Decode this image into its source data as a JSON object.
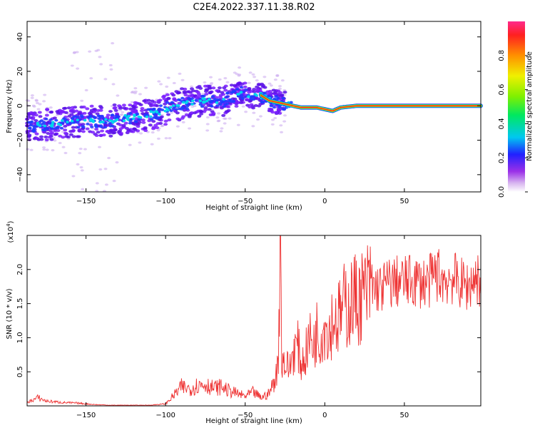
{
  "title": "C2E4.2022.337.11.38.R02",
  "chart_data": [
    {
      "type": "heatmap",
      "xlabel": "Height of straight line (km)",
      "ylabel": "Frequency (Hz)",
      "xlim": [
        -187,
        98
      ],
      "ylim": [
        -50,
        49
      ],
      "x_ticks": [
        -150,
        -100,
        -50,
        0,
        50
      ],
      "y_ticks": [
        -40,
        -20,
        0,
        20,
        40
      ],
      "ridge": {
        "x": [
          -187,
          -175,
          -165,
          -155,
          -145,
          -135,
          -125,
          -115,
          -105,
          -95,
          -85,
          -75,
          -65,
          -57,
          -50,
          -45,
          -40,
          -35,
          -30,
          -25,
          -20,
          -15,
          -10,
          -5,
          0,
          5,
          10,
          20,
          40,
          60,
          80,
          98
        ],
        "y": [
          -12,
          -11,
          -10,
          -9,
          -9,
          -9,
          -7,
          -6,
          -4,
          0,
          2,
          3,
          2,
          6,
          8,
          5,
          6,
          3,
          2,
          1,
          0,
          -1,
          -1,
          -1,
          -2,
          -3,
          -1,
          0,
          0,
          0,
          0,
          0
        ]
      },
      "colorbar": {
        "label": "Normalized spectral amplitude",
        "range": [
          0,
          1
        ],
        "ticks": [
          0.0,
          0.2,
          0.4,
          0.6,
          0.8
        ]
      }
    },
    {
      "type": "line",
      "xlabel": "Height of straight line (km)",
      "ylabel": "SNR (10 * v/v)",
      "multiplier": "(x10",
      "multiplier_exp": "4",
      "multiplier_close": ")",
      "xlim": [
        -187,
        98
      ],
      "ylim": [
        0,
        2.5
      ],
      "x_ticks": [
        -150,
        -100,
        -50,
        0,
        50
      ],
      "y_ticks": [
        0.5,
        1.0,
        1.5,
        2.0
      ],
      "color": "#ee3333",
      "series": [
        {
          "x": [
            -187,
            -180,
            -175,
            -165,
            -155,
            -145,
            -135,
            -120,
            -110,
            -100,
            -95,
            -90,
            -85,
            -80,
            -75,
            -70,
            -65,
            -60,
            -55,
            -50,
            -45,
            -40,
            -35,
            -32,
            -30,
            -29,
            -28,
            -27,
            -26,
            -25,
            -22,
            -20,
            -17,
            -15,
            -12,
            -10,
            -7,
            -5,
            -3,
            0,
            3,
            5,
            8,
            10,
            13,
            15,
            18,
            20,
            25,
            30,
            35,
            40,
            45,
            50,
            55,
            60,
            65,
            70,
            75,
            80,
            85,
            90,
            95,
            98
          ],
          "y": [
            0.05,
            0.12,
            0.07,
            0.05,
            0.04,
            0.02,
            0.01,
            0.01,
            0.01,
            0.03,
            0.15,
            0.28,
            0.25,
            0.3,
            0.32,
            0.26,
            0.28,
            0.22,
            0.18,
            0.14,
            0.2,
            0.12,
            0.18,
            0.35,
            0.5,
            0.8,
            2.5,
            0.6,
            0.7,
            0.6,
            0.55,
            0.8,
            0.9,
            0.6,
            0.75,
            1.0,
            0.9,
            1.1,
            1.0,
            1.2,
            1.1,
            1.3,
            1.25,
            1.35,
            1.5,
            1.45,
            1.6,
            1.55,
            1.65,
            1.75,
            1.72,
            1.8,
            1.82,
            1.82,
            1.83,
            1.82,
            1.8,
            1.95,
            1.85,
            1.88,
            1.8,
            1.75,
            1.9,
            1.8
          ]
        }
      ]
    }
  ]
}
